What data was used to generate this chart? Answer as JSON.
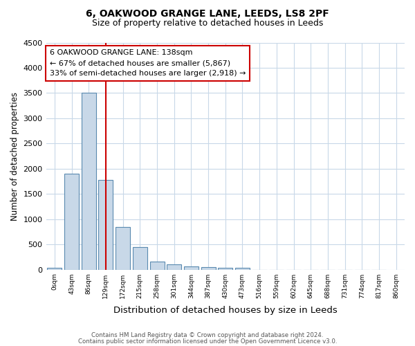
{
  "title1": "6, OAKWOOD GRANGE LANE, LEEDS, LS8 2PF",
  "title2": "Size of property relative to detached houses in Leeds",
  "xlabel": "Distribution of detached houses by size in Leeds",
  "ylabel": "Number of detached properties",
  "bin_labels": [
    "0sqm",
    "43sqm",
    "86sqm",
    "129sqm",
    "172sqm",
    "215sqm",
    "258sqm",
    "301sqm",
    "344sqm",
    "387sqm",
    "430sqm",
    "473sqm",
    "516sqm",
    "559sqm",
    "602sqm",
    "645sqm",
    "688sqm",
    "731sqm",
    "774sqm",
    "817sqm",
    "860sqm"
  ],
  "bar_values": [
    40,
    1900,
    3500,
    1780,
    840,
    450,
    165,
    100,
    65,
    45,
    30,
    30,
    0,
    0,
    0,
    0,
    0,
    0,
    0,
    0
  ],
  "bar_color": "#c8d8e8",
  "bar_edge_color": "#5a8ab0",
  "vline_x": 3.0,
  "vline_color": "#cc0000",
  "annotation_text": "6 OAKWOOD GRANGE LANE: 138sqm\n← 67% of detached houses are smaller (5,867)\n33% of semi-detached houses are larger (2,918) →",
  "annotation_box_color": "#ffffff",
  "annotation_box_edge": "#cc0000",
  "ylim": [
    0,
    4500
  ],
  "footer1": "Contains HM Land Registry data © Crown copyright and database right 2024.",
  "footer2": "Contains public sector information licensed under the Open Government Licence v3.0.",
  "background_color": "#ffffff",
  "grid_color": "#c8d8e8"
}
